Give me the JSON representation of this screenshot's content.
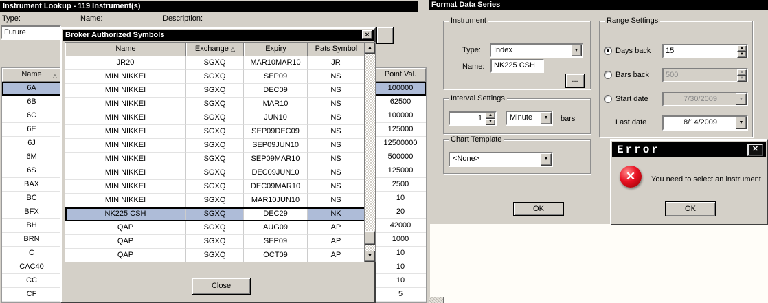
{
  "icons": {
    "sort_asc": "△",
    "close": "✕",
    "dropdown": "▼",
    "spin_up": "▲",
    "spin_down": "▼",
    "error_x": "✕"
  },
  "lookup_window": {
    "title": "Instrument Lookup - 119 Instrument(s)",
    "type_label": "Type:",
    "name_label": "Name:",
    "description_label": "Description:",
    "type_value": "Future",
    "table": {
      "name_header": "Name",
      "point_header": "Point Val.",
      "rows": [
        {
          "name": "6A",
          "point": "100000",
          "selected": true
        },
        {
          "name": "6B",
          "point": "62500"
        },
        {
          "name": "6C",
          "point": "100000"
        },
        {
          "name": "6E",
          "point": "125000"
        },
        {
          "name": "6J",
          "point": "12500000"
        },
        {
          "name": "6M",
          "point": "500000"
        },
        {
          "name": "6S",
          "point": "125000"
        },
        {
          "name": "BAX",
          "point": "2500"
        },
        {
          "name": "BC",
          "point": "10"
        },
        {
          "name": "BFX",
          "point": "20"
        },
        {
          "name": "BH",
          "point": "42000"
        },
        {
          "name": "BRN",
          "point": "1000"
        },
        {
          "name": "C",
          "point": "10"
        },
        {
          "name": "CAC40",
          "point": "10"
        },
        {
          "name": "CC",
          "point": "10"
        },
        {
          "name": "CF",
          "point": "5"
        }
      ]
    }
  },
  "broker_dialog": {
    "title": "Broker Authorized Symbols",
    "columns": [
      "Name",
      "Exchange",
      "Expiry",
      "Pats Symbol"
    ],
    "sorted_column": "Exchange",
    "rows": [
      [
        "JR20",
        "SGXQ",
        "MAR10MAR10",
        "JR"
      ],
      [
        "MIN NIKKEI",
        "SGXQ",
        "SEP09",
        "NS"
      ],
      [
        "MIN NIKKEI",
        "SGXQ",
        "DEC09",
        "NS"
      ],
      [
        "MIN NIKKEI",
        "SGXQ",
        "MAR10",
        "NS"
      ],
      [
        "MIN NIKKEI",
        "SGXQ",
        "JUN10",
        "NS"
      ],
      [
        "MIN NIKKEI",
        "SGXQ",
        "SEP09DEC09",
        "NS"
      ],
      [
        "MIN NIKKEI",
        "SGXQ",
        "SEP09JUN10",
        "NS"
      ],
      [
        "MIN NIKKEI",
        "SGXQ",
        "SEP09MAR10",
        "NS"
      ],
      [
        "MIN NIKKEI",
        "SGXQ",
        "DEC09JUN10",
        "NS"
      ],
      [
        "MIN NIKKEI",
        "SGXQ",
        "DEC09MAR10",
        "NS"
      ],
      [
        "MIN NIKKEI",
        "SGXQ",
        "MAR10JUN10",
        "NS"
      ],
      [
        "NK225 CSH",
        "SGXQ",
        "DEC29",
        "NK"
      ],
      [
        "QAP",
        "SGXQ",
        "AUG09",
        "AP"
      ],
      [
        "QAP",
        "SGXQ",
        "SEP09",
        "AP"
      ],
      [
        "QAP",
        "SGXQ",
        "OCT09",
        "AP"
      ]
    ],
    "selected_row": 11,
    "close_button": "Close"
  },
  "format_window": {
    "title": "Format Data Series",
    "instrument_group": {
      "legend": "Instrument",
      "type_label": "Type:",
      "type_value": "Index",
      "name_label": "Name:",
      "name_value": "NK225 CSH",
      "browse_button": "..."
    },
    "interval_group": {
      "legend": "Interval Settings",
      "interval_value": "1",
      "interval_unit": "Minute",
      "bars_label": "bars"
    },
    "template_group": {
      "legend": "Chart Template",
      "template_value": "<None>"
    },
    "range_group": {
      "legend": "Range Settings",
      "days_back_label": "Days back",
      "days_back_value": "15",
      "bars_back_label": "Bars back",
      "bars_back_value": "500",
      "start_date_label": "Start date",
      "start_date_value": "7/30/2009",
      "last_date_label": "Last date",
      "last_date_value": "8/14/2009",
      "selected_option": "Days back"
    },
    "ok_button": "OK"
  },
  "error_dialog": {
    "title": "Error",
    "message": "You need to select an instrument",
    "ok_button": "OK"
  }
}
